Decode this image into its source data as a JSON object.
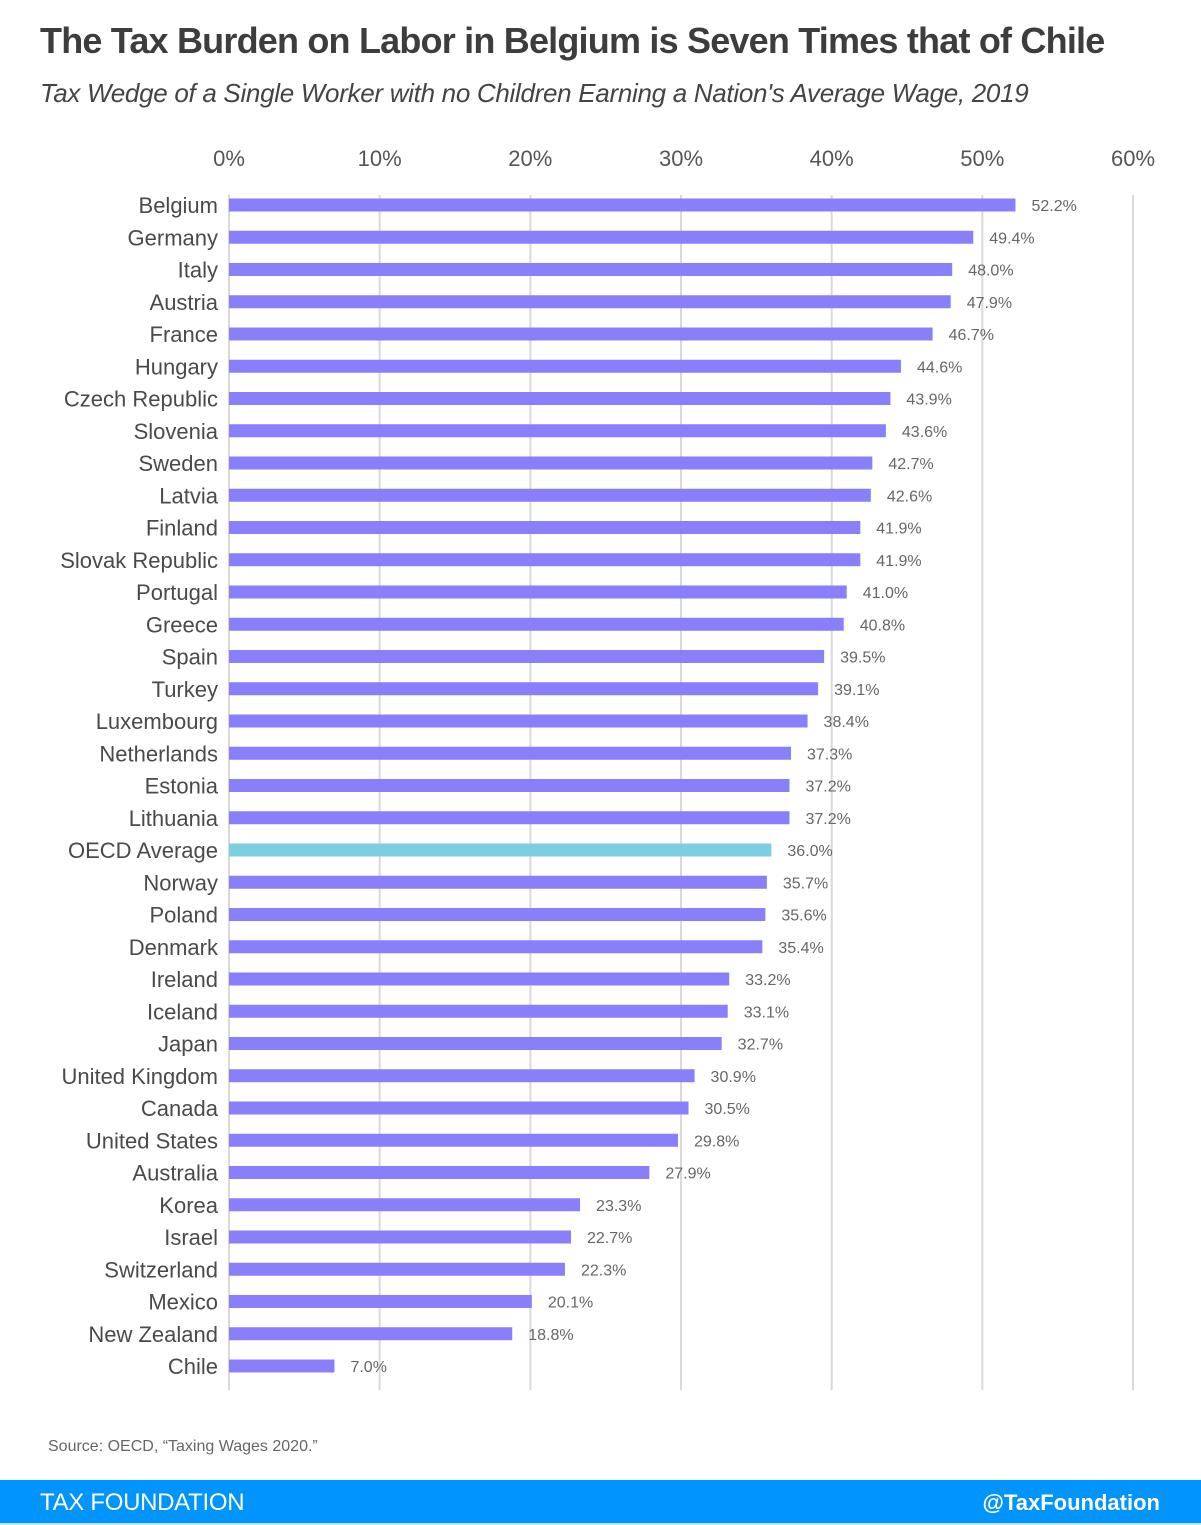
{
  "header": {
    "title": "The Tax Burden on Labor in Belgium is Seven Times that of Chile",
    "subtitle": "Tax Wedge of a Single Worker with no Children Earning a Nation's Average Wage, 2019"
  },
  "source": "Source: OECD, “Taxing Wages 2020.”",
  "footer": {
    "brand": "TAX FOUNDATION",
    "handle": "@TaxFoundation",
    "color": "#0094ff"
  },
  "chart_data": {
    "type": "bar",
    "orientation": "horizontal",
    "title": "The Tax Burden on Labor in Belgium is Seven Times that of Chile",
    "subtitle": "Tax Wedge of a Single Worker with no Children Earning a Nation's Average Wage, 2019",
    "xlabel": "",
    "ylabel": "",
    "xlim": [
      0,
      60
    ],
    "xticks": [
      0,
      10,
      20,
      30,
      40,
      50,
      60
    ],
    "xtick_labels": [
      "0%",
      "10%",
      "20%",
      "30%",
      "40%",
      "50%",
      "60%"
    ],
    "x_axis_position": "top",
    "grid": true,
    "bar_color": "#8a7ffa",
    "highlight_color": "#7bcfe0",
    "highlight_category": "OECD Average",
    "categories": [
      "Belgium",
      "Germany",
      "Italy",
      "Austria",
      "France",
      "Hungary",
      "Czech Republic",
      "Slovenia",
      "Sweden",
      "Latvia",
      "Finland",
      "Slovak Republic",
      "Portugal",
      "Greece",
      "Spain",
      "Turkey",
      "Luxembourg",
      "Netherlands",
      "Estonia",
      "Lithuania",
      "OECD Average",
      "Norway",
      "Poland",
      "Denmark",
      "Ireland",
      "Iceland",
      "Japan",
      "United Kingdom",
      "Canada",
      "United States",
      "Australia",
      "Korea",
      "Israel",
      "Switzerland",
      "Mexico",
      "New Zealand",
      "Chile"
    ],
    "values": [
      52.2,
      49.4,
      48.0,
      47.9,
      46.7,
      44.6,
      43.9,
      43.6,
      42.7,
      42.6,
      41.9,
      41.9,
      41.0,
      40.8,
      39.5,
      39.1,
      38.4,
      37.3,
      37.2,
      37.2,
      36.0,
      35.7,
      35.6,
      35.4,
      33.2,
      33.1,
      32.7,
      30.9,
      30.5,
      29.8,
      27.9,
      23.3,
      22.7,
      22.3,
      20.1,
      18.8,
      7.0
    ],
    "value_labels": [
      "52.2%",
      "49.4%",
      "48.0%",
      "47.9%",
      "46.7%",
      "44.6%",
      "43.9%",
      "43.6%",
      "42.7%",
      "42.6%",
      "41.9%",
      "41.9%",
      "41.0%",
      "40.8%",
      "39.5%",
      "39.1%",
      "38.4%",
      "37.3%",
      "37.2%",
      "37.2%",
      "36.0%",
      "35.7%",
      "35.6%",
      "35.4%",
      "33.2%",
      "33.1%",
      "32.7%",
      "30.9%",
      "30.5%",
      "29.8%",
      "27.9%",
      "23.3%",
      "22.7%",
      "22.3%",
      "20.1%",
      "18.8%",
      "7.0%"
    ]
  }
}
